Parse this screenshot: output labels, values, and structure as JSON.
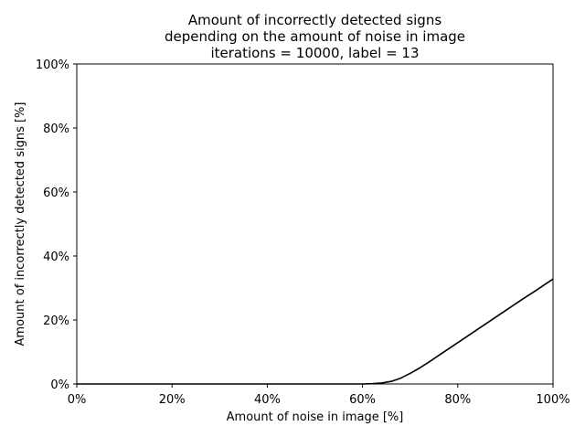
{
  "chart_data": {
    "type": "line",
    "title_lines": [
      "Amount of incorrectly detected signs",
      "depending on the amount of noise in image",
      "iterations = 10000, label = 13"
    ],
    "xlabel": "Amount of noise in image [%]",
    "ylabel": "Amount of incorrectly detected signs [%]",
    "xlim": [
      0,
      100
    ],
    "ylim": [
      0,
      100
    ],
    "xticks": [
      0,
      20,
      40,
      60,
      80,
      100
    ],
    "yticks": [
      0,
      20,
      40,
      60,
      80,
      100
    ],
    "xtick_labels": [
      "0%",
      "20%",
      "40%",
      "60%",
      "80%",
      "100%"
    ],
    "ytick_labels": [
      "0%",
      "20%",
      "40%",
      "60%",
      "80%",
      "100%"
    ],
    "grid": false,
    "series": [
      {
        "color": "#000000",
        "x": [
          0,
          10,
          20,
          30,
          40,
          50,
          60,
          62,
          64,
          66,
          68,
          70,
          72,
          74,
          76,
          78,
          80,
          82,
          84,
          86,
          88,
          90,
          92,
          94,
          96,
          98,
          100
        ],
        "y": [
          0,
          0,
          0,
          0,
          0,
          0,
          0,
          0.1,
          0.3,
          0.8,
          1.8,
          3.3,
          5.0,
          6.9,
          8.9,
          10.9,
          12.9,
          14.9,
          16.9,
          18.9,
          20.9,
          22.9,
          24.9,
          26.9,
          28.8,
          30.8,
          32.8
        ]
      }
    ]
  }
}
